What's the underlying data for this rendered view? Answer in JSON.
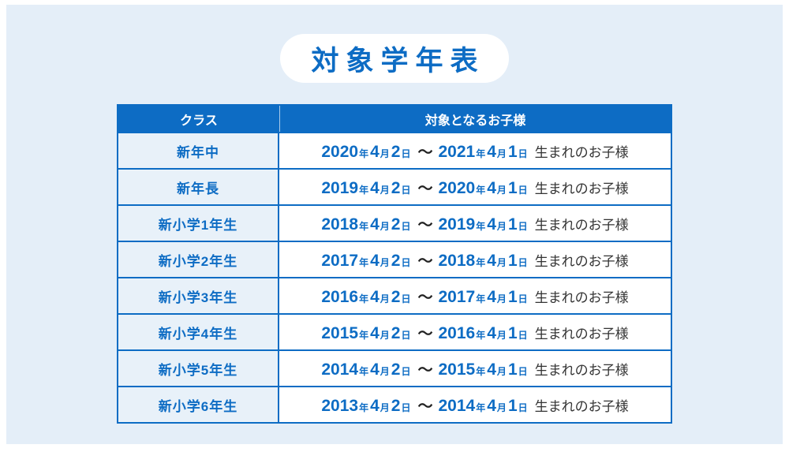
{
  "title": "対象学年表",
  "colors": {
    "accent": "#0d6cc4",
    "panel_bg": "#e4eef8",
    "row_label_bg": "#e8f1f9",
    "header_text": "#ffffff",
    "suffix_text": "#333333"
  },
  "table": {
    "headers": [
      "クラス",
      "対象となるお子様"
    ],
    "tilde": "〜",
    "rows": [
      {
        "class_label": "新年中",
        "period_start": "2020年4月2日",
        "period_end": "2021年4月1日",
        "suffix": "生まれのお子様"
      },
      {
        "class_label": "新年長",
        "period_start": "2019年4月2日",
        "period_end": "2020年4月1日",
        "suffix": "生まれのお子様"
      },
      {
        "class_label": "新小学1年生",
        "period_start": "2018年4月2日",
        "period_end": "2019年4月1日",
        "suffix": "生まれのお子様"
      },
      {
        "class_label": "新小学2年生",
        "period_start": "2017年4月2日",
        "period_end": "2018年4月1日",
        "suffix": "生まれのお子様"
      },
      {
        "class_label": "新小学3年生",
        "period_start": "2016年4月2日",
        "period_end": "2017年4月1日",
        "suffix": "生まれのお子様"
      },
      {
        "class_label": "新小学4年生",
        "period_start": "2015年4月2日",
        "period_end": "2016年4月1日",
        "suffix": "生まれのお子様"
      },
      {
        "class_label": "新小学5年生",
        "period_start": "2014年4月2日",
        "period_end": "2015年4月1日",
        "suffix": "生まれのお子様"
      },
      {
        "class_label": "新小学6年生",
        "period_start": "2013年4月2日",
        "period_end": "2014年4月1日",
        "suffix": "生まれのお子様"
      }
    ]
  }
}
